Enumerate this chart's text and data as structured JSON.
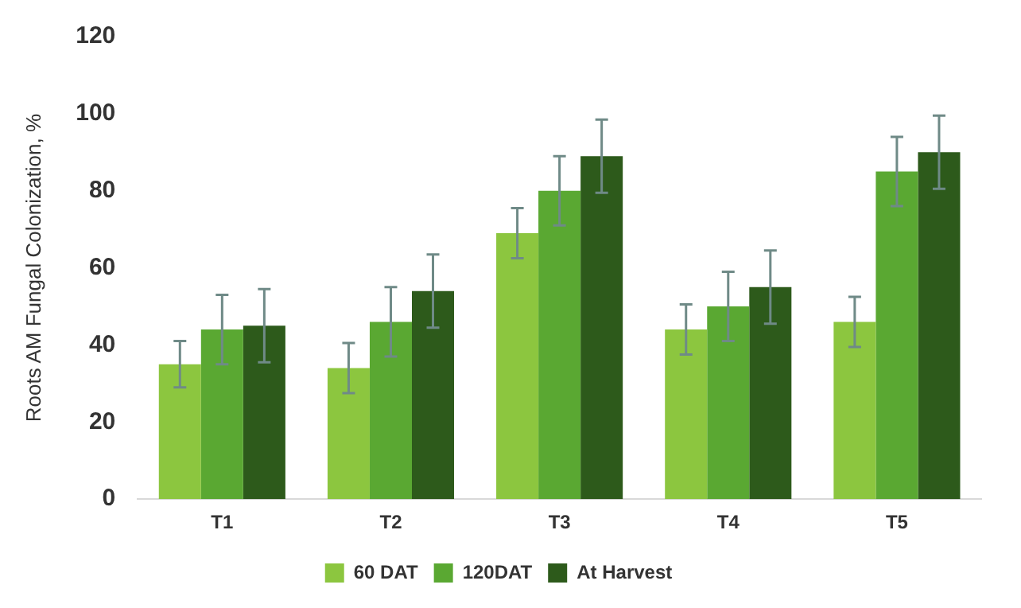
{
  "chart_data": {
    "type": "bar",
    "ylabel": "Roots AM Fungal Colonization, %",
    "categories": [
      "T1",
      "T2",
      "T3",
      "T4",
      "T5"
    ],
    "series": [
      {
        "name": "60 DAT",
        "color": "#8cc63f",
        "values": [
          35,
          34,
          69,
          44,
          46
        ],
        "errors": [
          6,
          6.5,
          6.5,
          6.5,
          6.5
        ]
      },
      {
        "name": "120DAT",
        "color": "#5aa832",
        "values": [
          44,
          46,
          80,
          50,
          85
        ],
        "errors": [
          9,
          9,
          9,
          9,
          9
        ]
      },
      {
        "name": "At Harvest",
        "color": "#2d5a1b",
        "values": [
          45,
          54,
          89,
          55,
          90
        ],
        "errors": [
          9.5,
          9.5,
          9.5,
          9.5,
          9.5
        ]
      }
    ],
    "ylim": [
      0,
      120
    ],
    "yticks": [
      0,
      20,
      40,
      60,
      80,
      100,
      120
    ],
    "grid": false,
    "legend": "bottom"
  }
}
